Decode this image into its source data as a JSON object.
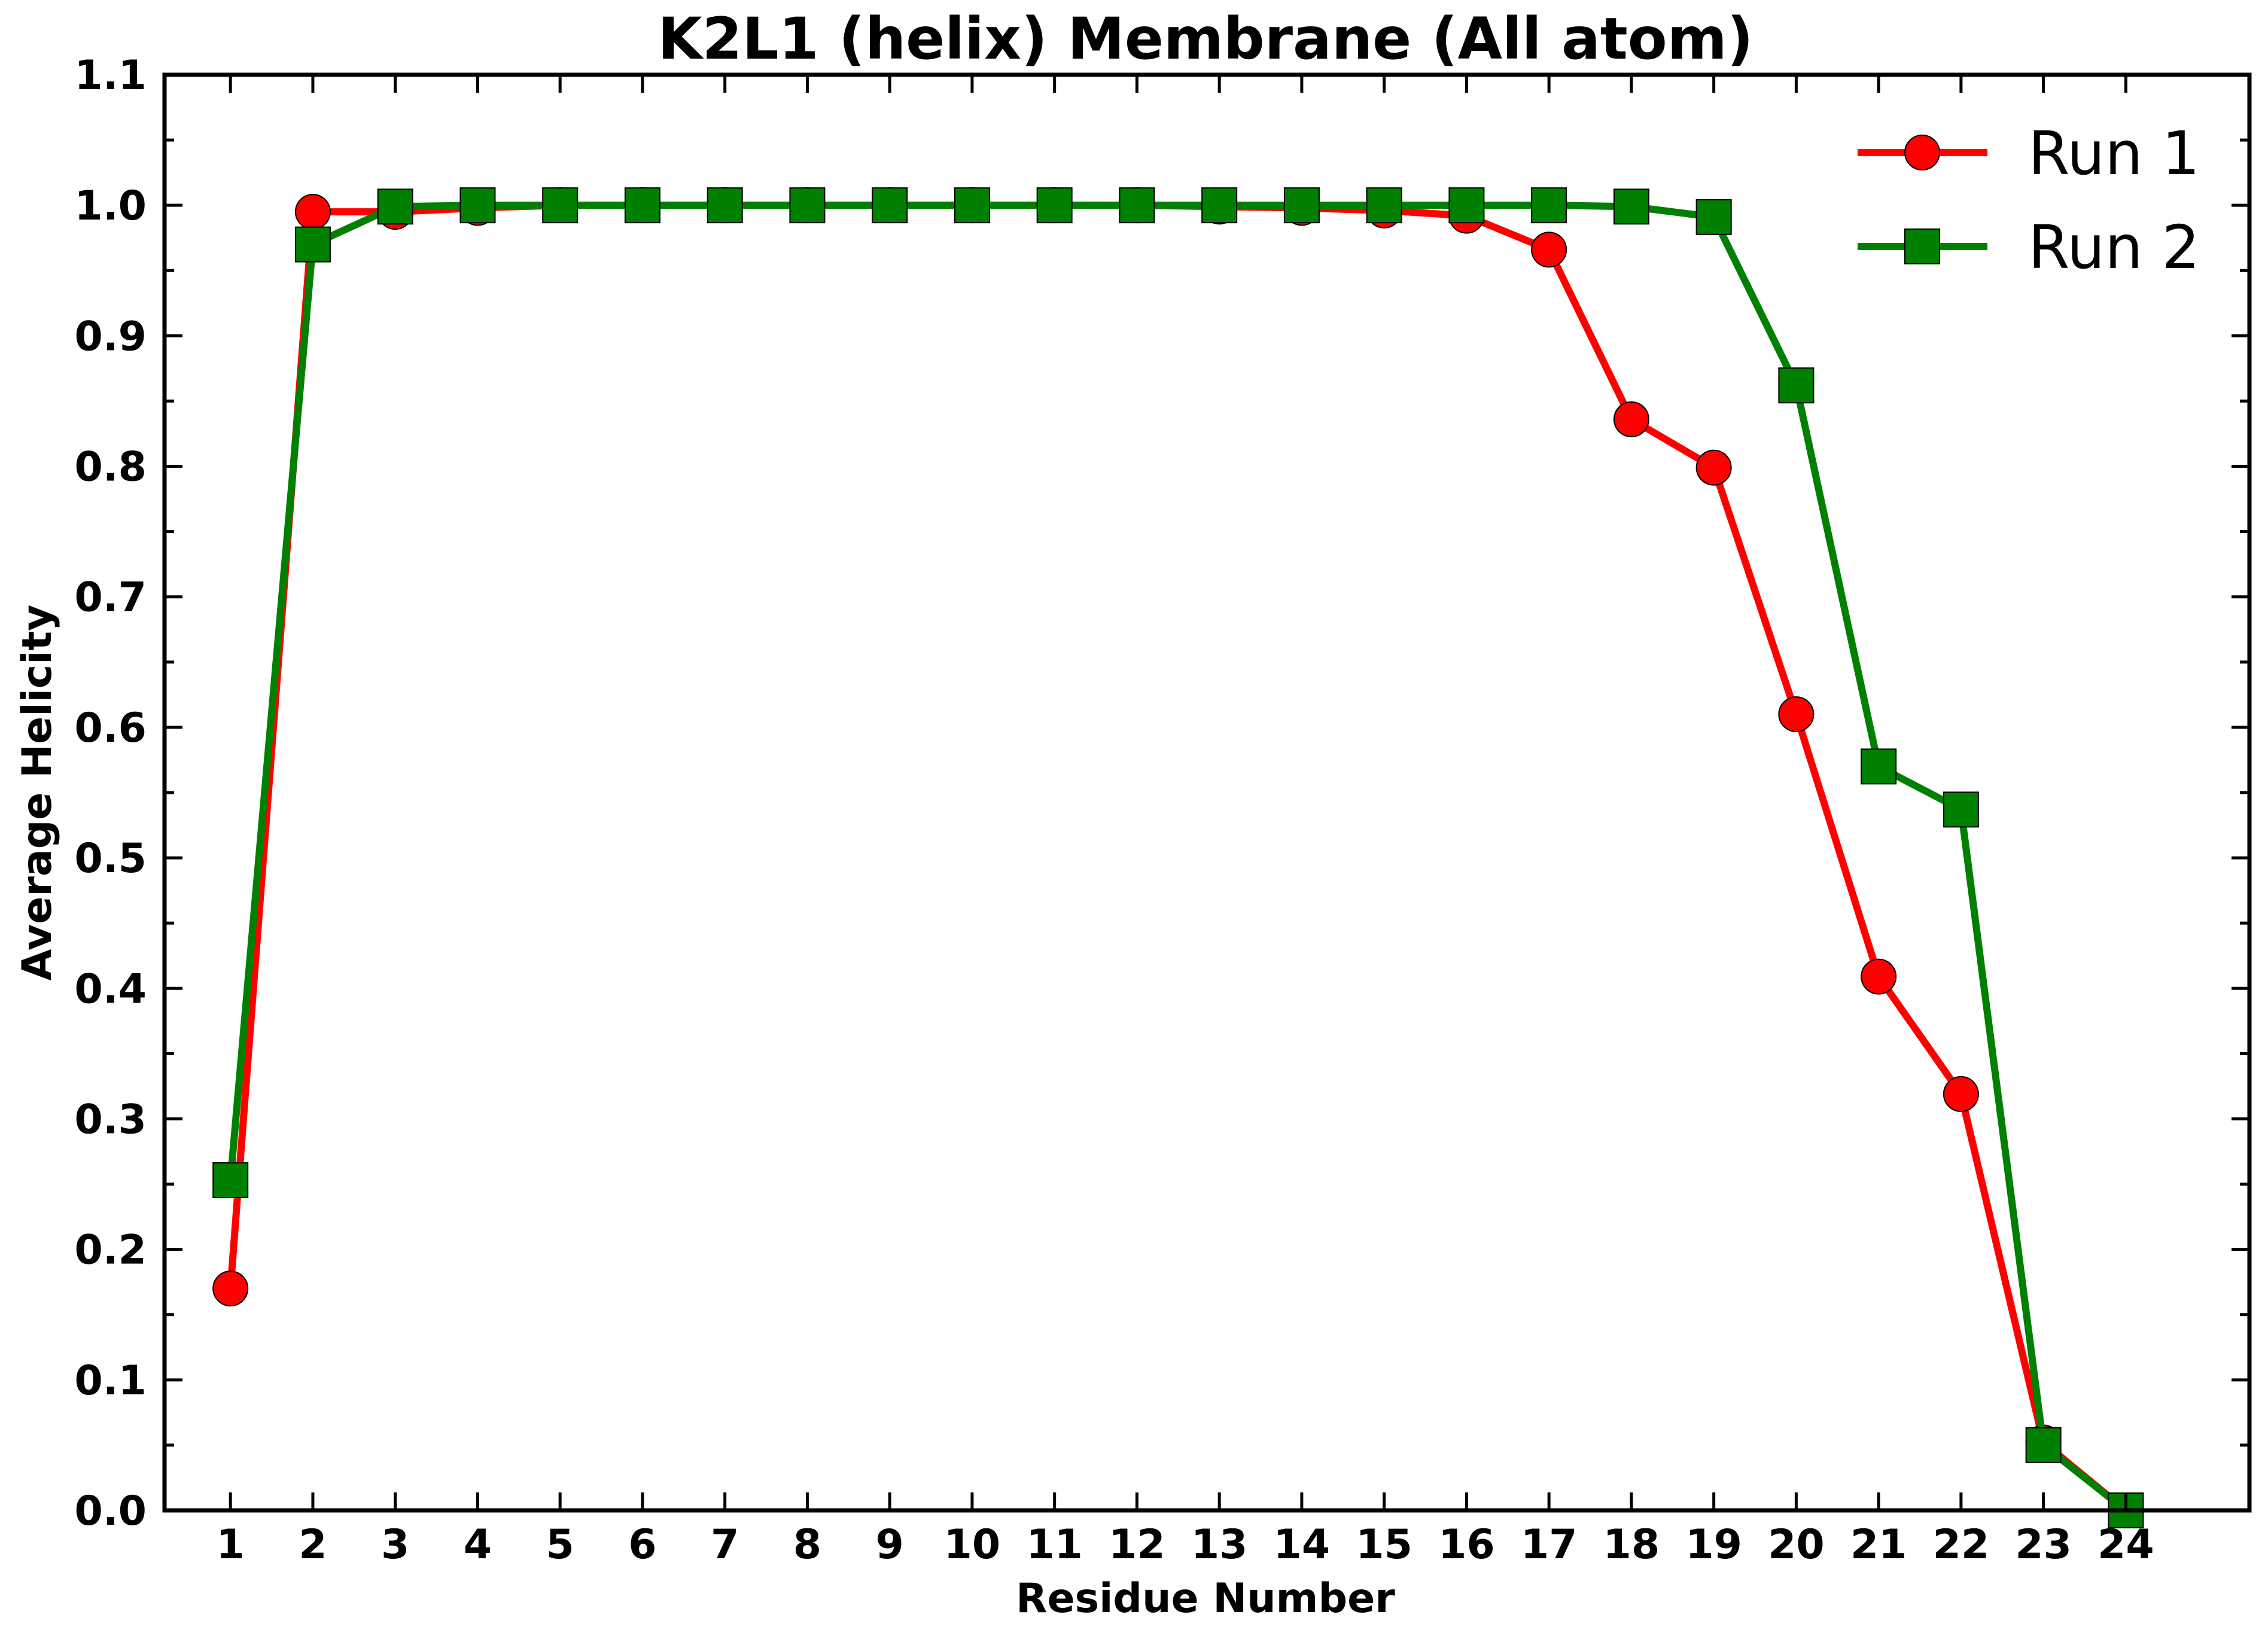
{
  "chart_data": {
    "type": "line",
    "title": "K2L1 (helix) Membrane (All atom)",
    "xlabel": "Residue Number",
    "ylabel": "Average Helicity",
    "xlim": [
      0.2,
      25.5
    ],
    "ylim": [
      0.0,
      1.1
    ],
    "x": [
      1,
      2,
      3,
      4,
      5,
      6,
      7,
      8,
      9,
      10,
      11,
      12,
      13,
      14,
      15,
      16,
      17,
      18,
      19,
      20,
      21,
      22,
      23,
      24
    ],
    "x_tick_labels": [
      "1",
      "2",
      "3",
      "4",
      "5",
      "6",
      "7",
      "8",
      "9",
      "10",
      "11",
      "12",
      "13",
      "14",
      "15",
      "16",
      "17",
      "18",
      "19",
      "20",
      "21",
      "22",
      "23",
      "24"
    ],
    "y_tick_labels": [
      "0.0",
      "0.1",
      "0.2",
      "0.3",
      "0.4",
      "0.5",
      "0.6",
      "0.7",
      "0.8",
      "0.9",
      "1.0",
      "1.1"
    ],
    "y_ticks": [
      0.0,
      0.1,
      0.2,
      0.3,
      0.4,
      0.5,
      0.6,
      0.7,
      0.8,
      0.9,
      1.0,
      1.1
    ],
    "legend_position": "top-right",
    "grid": false,
    "series": [
      {
        "name": "Run 1",
        "color": "#ff0000",
        "marker": "circle",
        "values": [
          0.17,
          0.995,
          0.995,
          0.998,
          1.0,
          1.0,
          1.0,
          1.0,
          1.0,
          1.0,
          1.0,
          1.0,
          0.999,
          0.998,
          0.996,
          0.992,
          0.966,
          0.836,
          0.799,
          0.61,
          0.409,
          0.319,
          0.052,
          0.0
        ]
      },
      {
        "name": "Run 2",
        "color": "#008000",
        "marker": "square",
        "values": [
          0.253,
          0.97,
          0.999,
          1.0,
          1.0,
          1.0,
          1.0,
          1.0,
          1.0,
          1.0,
          1.0,
          1.0,
          1.0,
          1.0,
          1.0,
          1.0,
          1.0,
          0.999,
          0.991,
          0.862,
          0.57,
          0.537,
          0.05,
          0.0
        ]
      }
    ]
  }
}
